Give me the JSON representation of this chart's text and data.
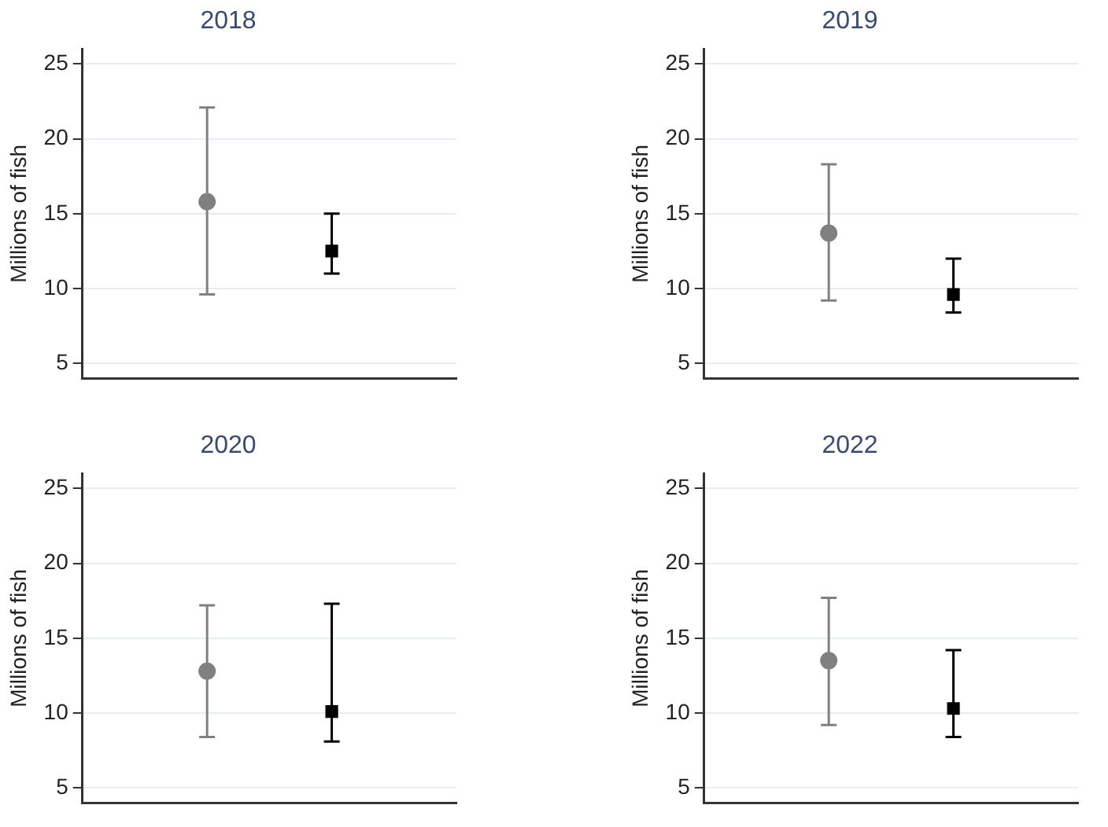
{
  "chart_data": [
    {
      "type": "scatter",
      "title": "2018",
      "ylabel": "Millions of fish",
      "categories": [
        null,
        null
      ],
      "ylim": [
        4,
        26
      ],
      "yticks": [
        5,
        10,
        15,
        20,
        25
      ],
      "grid": "y",
      "tick_labels": "y",
      "series": [
        {
          "color": "#808080",
          "marker": "circle",
          "values": [
            15.8,
            null
          ],
          "errors": [
            [
              9.6,
              22.1
            ],
            null
          ]
        },
        {
          "color": "#000000",
          "marker": "square",
          "values": [
            null,
            12.5
          ],
          "errors": [
            null,
            [
              11.0,
              15.0
            ]
          ]
        }
      ]
    },
    {
      "type": "scatter",
      "title": "2019",
      "ylabel": "Millions of fish",
      "categories": [
        null,
        null
      ],
      "ylim": [
        4,
        26
      ],
      "yticks": [
        5,
        10,
        15,
        20,
        25
      ],
      "grid": "y",
      "tick_labels": "y",
      "series": [
        {
          "color": "#808080",
          "marker": "circle",
          "values": [
            13.7,
            null
          ],
          "errors": [
            [
              9.2,
              18.3
            ],
            null
          ]
        },
        {
          "color": "#000000",
          "marker": "square",
          "values": [
            null,
            9.6
          ],
          "errors": [
            null,
            [
              8.4,
              12.0
            ]
          ]
        }
      ]
    },
    {
      "type": "scatter",
      "title": "2020",
      "ylabel": "Millions of fish",
      "categories": [
        null,
        null
      ],
      "ylim": [
        4,
        26
      ],
      "yticks": [
        5,
        10,
        15,
        20,
        25
      ],
      "grid": "y",
      "tick_labels": "y",
      "series": [
        {
          "color": "#808080",
          "marker": "circle",
          "values": [
            12.8,
            null
          ],
          "errors": [
            [
              8.4,
              17.2
            ],
            null
          ]
        },
        {
          "color": "#000000",
          "marker": "square",
          "values": [
            null,
            10.1
          ],
          "errors": [
            null,
            [
              8.1,
              17.3
            ]
          ]
        }
      ]
    },
    {
      "type": "scatter",
      "title": "2022",
      "ylabel": "Millions of fish",
      "categories": [
        null,
        null
      ],
      "ylim": [
        4,
        26
      ],
      "yticks": [
        5,
        10,
        15,
        20,
        25
      ],
      "grid": "y",
      "tick_labels": "y",
      "series": [
        {
          "color": "#808080",
          "marker": "circle",
          "values": [
            13.5,
            null
          ],
          "errors": [
            [
              9.2,
              17.7
            ],
            null
          ]
        },
        {
          "color": "#000000",
          "marker": "square",
          "values": [
            null,
            10.3
          ],
          "errors": [
            null,
            [
              8.4,
              14.2
            ]
          ]
        }
      ]
    }
  ]
}
